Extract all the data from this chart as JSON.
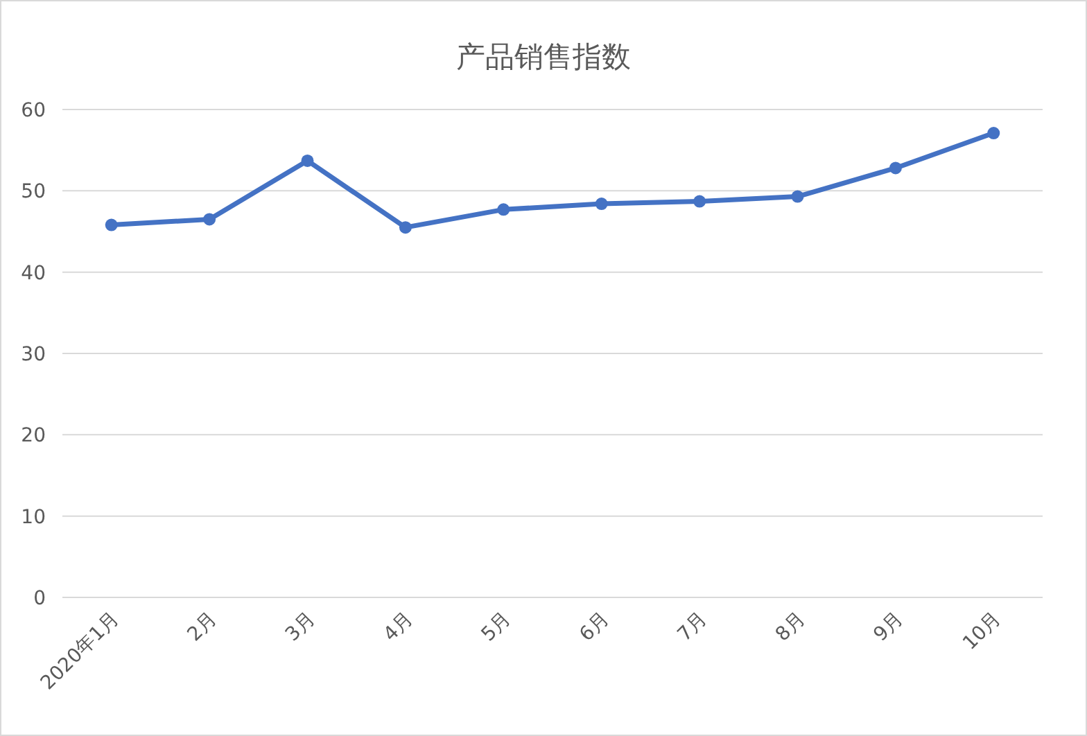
{
  "chart_data": {
    "type": "line",
    "title": "产品销售指数",
    "categories": [
      "2020年1月",
      "2月",
      "3月",
      "4月",
      "5月",
      "6月",
      "7月",
      "8月",
      "9月",
      "10月"
    ],
    "series": [
      {
        "color": "#4472c4",
        "values": [
          45.8,
          46.5,
          53.7,
          45.5,
          47.7,
          48.4,
          48.7,
          49.3,
          52.8,
          57.1
        ]
      }
    ],
    "ylim": [
      0,
      60
    ],
    "yticks": [
      0,
      10,
      20,
      30,
      40,
      50,
      60
    ],
    "grid": "y",
    "marker": "circle",
    "line_style": "solid"
  }
}
